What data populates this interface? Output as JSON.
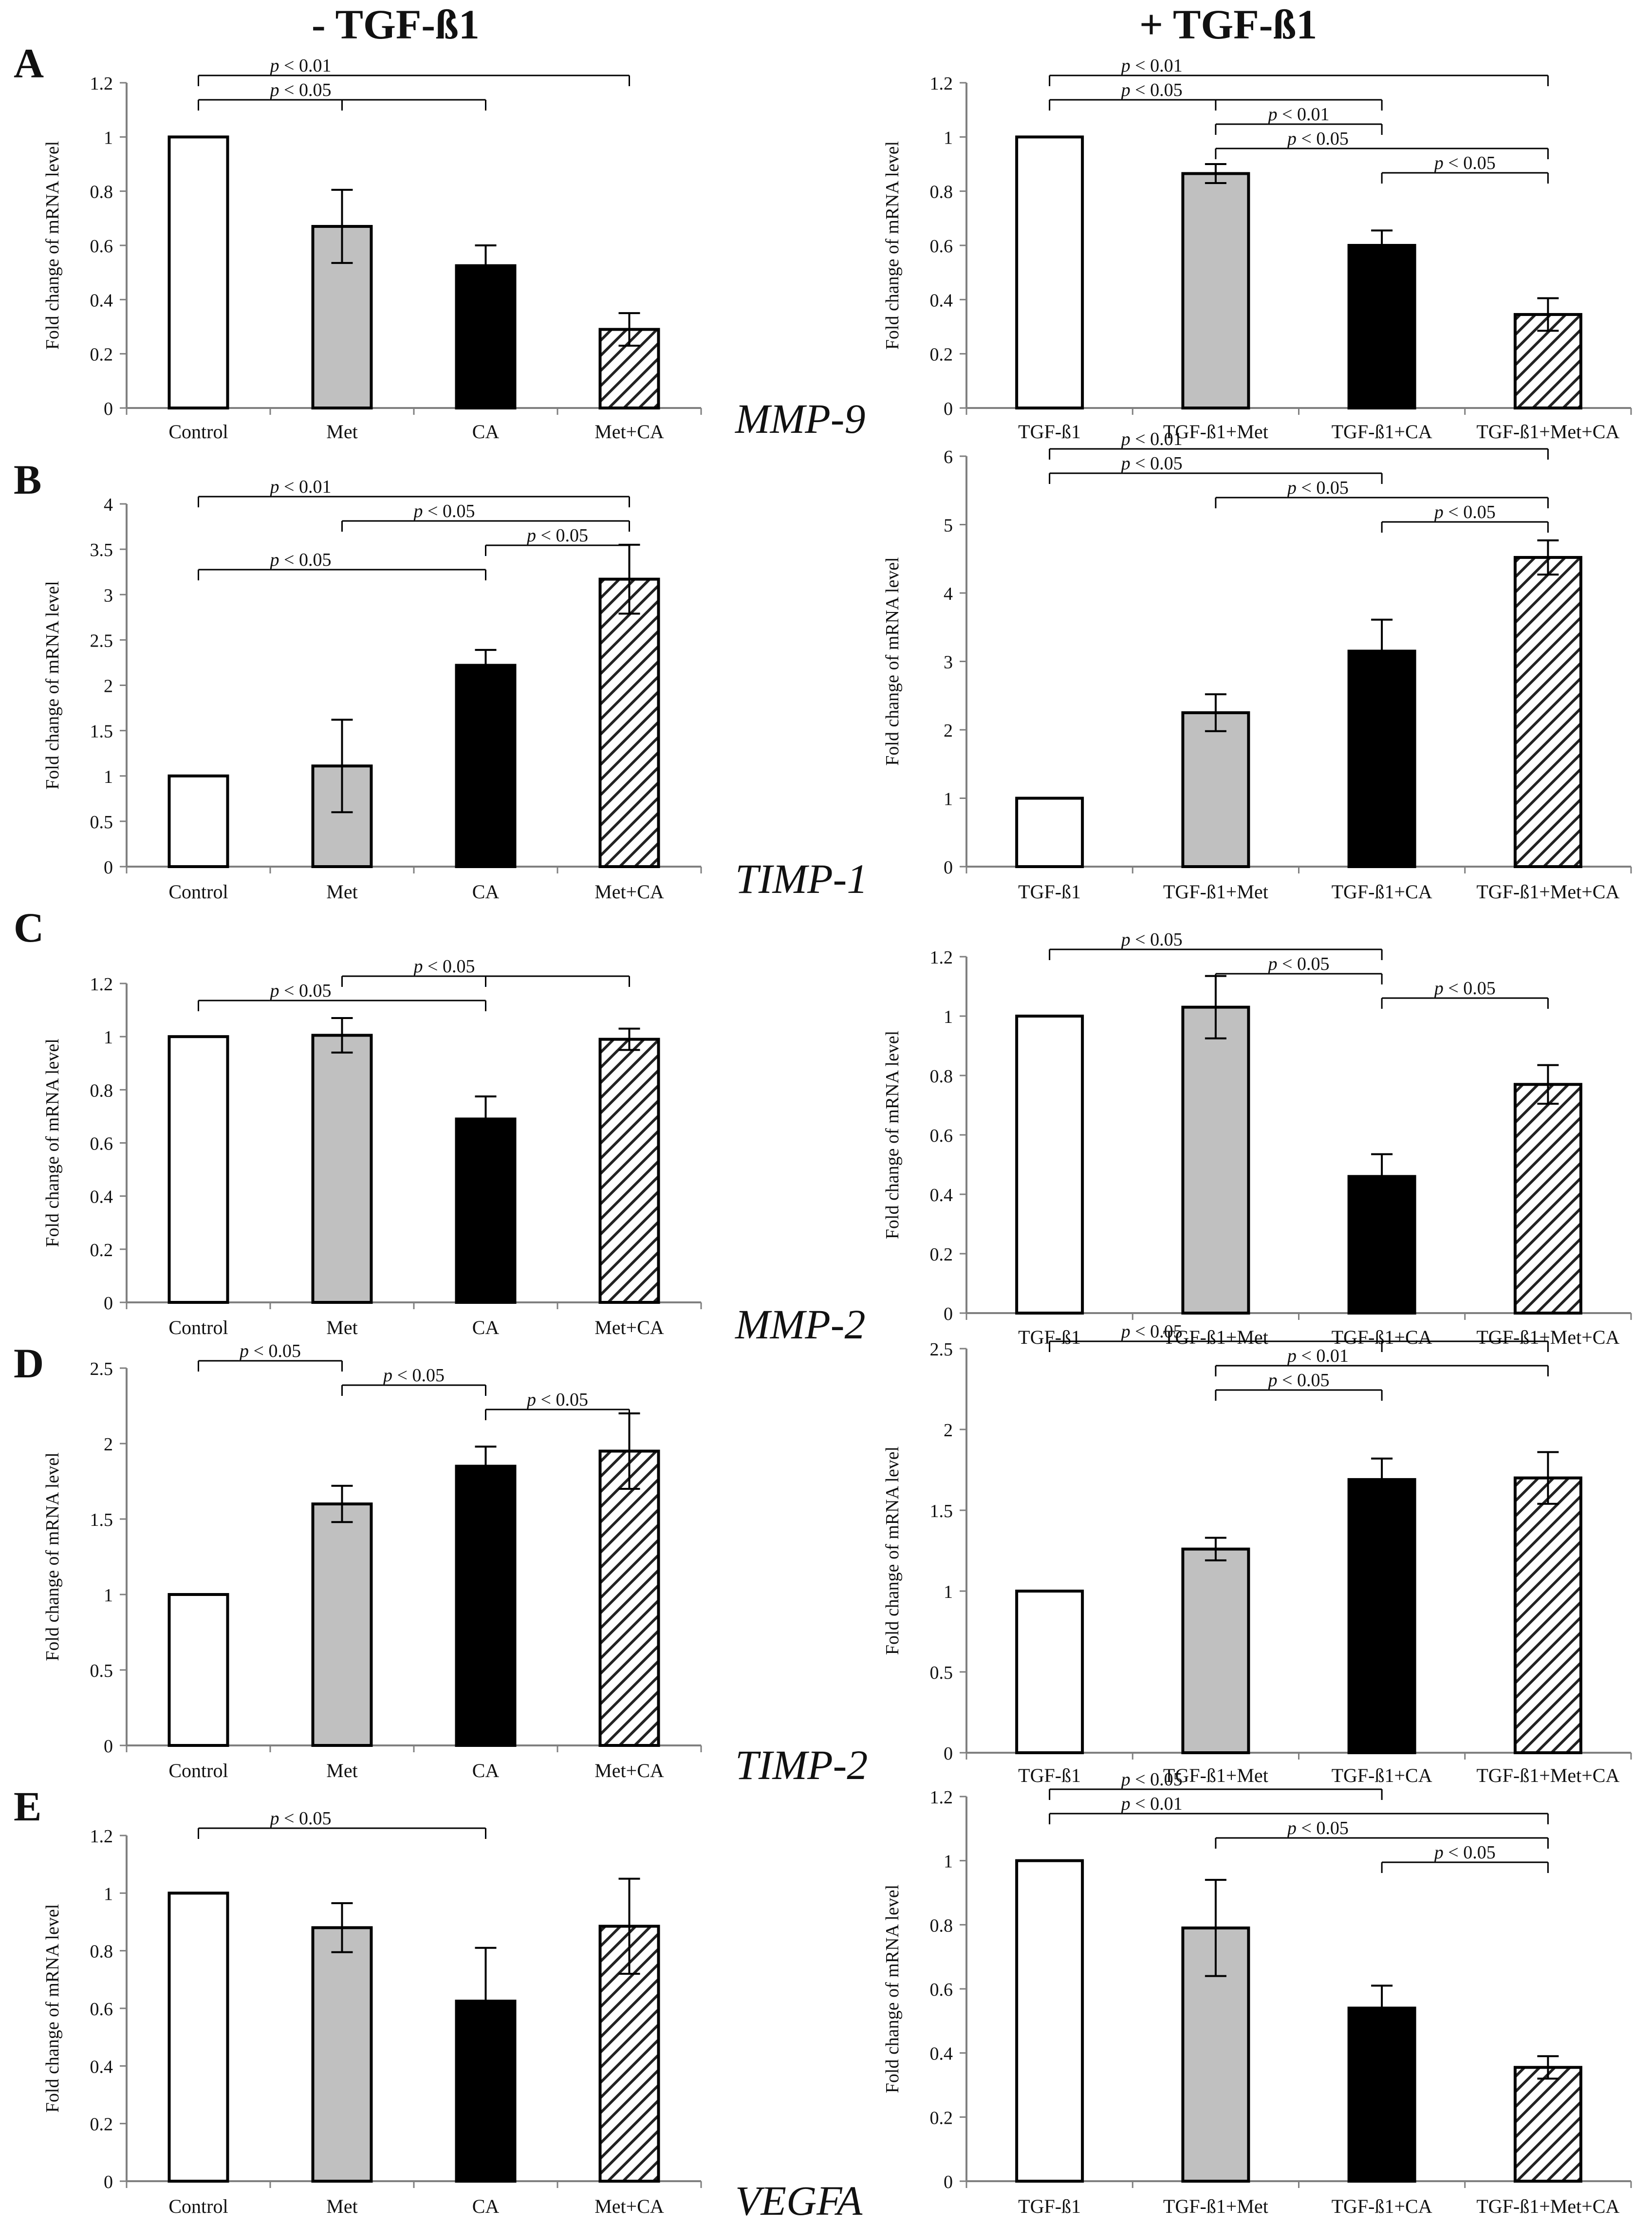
{
  "headers": {
    "left": "- TGF-ß1",
    "right": "+ TGF-ß1"
  },
  "colors": {
    "control": "#ffffff",
    "met": "#c0c0c0",
    "ca": "#000000",
    "hatch": "#222222",
    "axis": "#808080",
    "text": "#111111"
  },
  "rows": [
    {
      "letter": "A",
      "gene": "MMP-9"
    },
    {
      "letter": "B",
      "gene": "TIMP-1"
    },
    {
      "letter": "C",
      "gene": "MMP-2"
    },
    {
      "letter": "D",
      "gene": "TIMP-2"
    },
    {
      "letter": "E",
      "gene": "VEGFA"
    }
  ],
  "chart_data": [
    {
      "id": "A-left",
      "type": "bar",
      "ylabel": "Fold change of mRNA level",
      "ylim": [
        0,
        1.2
      ],
      "yticks": [
        0,
        0.2,
        0.4,
        0.6,
        0.8,
        1,
        1.2
      ],
      "categories": [
        "Control",
        "Met",
        "CA",
        "Met+CA"
      ],
      "values": [
        1.0,
        0.67,
        0.525,
        0.29
      ],
      "errors": [
        0,
        0.135,
        0.075,
        0.06
      ],
      "sig": [
        {
          "label": "p < 0.01",
          "from": 0,
          "to": [
            3
          ]
        },
        {
          "label": "p < 0.05",
          "from": 0,
          "to": [
            1,
            2
          ]
        }
      ]
    },
    {
      "id": "A-right",
      "type": "bar",
      "ylabel": "Fold change of mRNA level",
      "ylim": [
        0,
        1.2
      ],
      "yticks": [
        0,
        0.2,
        0.4,
        0.6,
        0.8,
        1,
        1.2
      ],
      "categories": [
        "TGF-ß1",
        "TGF-ß1+Met",
        "TGF-ß1+CA",
        "TGF-ß1+Met+CA"
      ],
      "values": [
        1.0,
        0.865,
        0.6,
        0.345
      ],
      "errors": [
        0,
        0.035,
        0.055,
        0.06
      ],
      "sig": [
        {
          "label": "p < 0.01",
          "from": 0,
          "to": [
            3
          ]
        },
        {
          "label": "p < 0.05",
          "from": 0,
          "to": [
            1,
            2
          ]
        },
        {
          "label": "p < 0.01",
          "from": 1,
          "to": [
            2
          ]
        },
        {
          "label": "p < 0.05",
          "from": 1,
          "to": [
            3
          ]
        },
        {
          "label": "p < 0.05",
          "from": 2,
          "to": [
            3
          ]
        }
      ]
    },
    {
      "id": "B-left",
      "type": "bar",
      "ylabel": "Fold change of mRNA level",
      "ylim": [
        0,
        4
      ],
      "yticks": [
        0,
        0.5,
        1,
        1.5,
        2,
        2.5,
        3,
        3.5,
        4
      ],
      "categories": [
        "Control",
        "Met",
        "CA",
        "Met+CA"
      ],
      "values": [
        1.0,
        1.11,
        2.22,
        3.17
      ],
      "errors": [
        0,
        0.51,
        0.17,
        0.38
      ],
      "sig": [
        {
          "label": "p < 0.01",
          "from": 0,
          "to": [
            3
          ]
        },
        {
          "label": "p < 0.05",
          "from": 1,
          "to": [
            3
          ]
        },
        {
          "label": "p < 0.05",
          "from": 2,
          "to": [
            3
          ]
        },
        {
          "label": "p < 0.05",
          "from": 0,
          "to": [
            2
          ]
        }
      ]
    },
    {
      "id": "B-right",
      "type": "bar",
      "ylabel": "Fold change of mRNA level",
      "ylim": [
        0,
        6
      ],
      "yticks": [
        0,
        1,
        2,
        3,
        4,
        5,
        6
      ],
      "categories": [
        "TGF-ß1",
        "TGF-ß1+Met",
        "TGF-ß1+CA",
        "TGF-ß1+Met+CA"
      ],
      "values": [
        1.0,
        2.25,
        3.15,
        4.52
      ],
      "errors": [
        0,
        0.27,
        0.46,
        0.25
      ],
      "sig": [
        {
          "label": "p < 0.01",
          "from": 0,
          "to": [
            3
          ]
        },
        {
          "label": "p < 0.05",
          "from": 0,
          "to": [
            2
          ]
        },
        {
          "label": "p < 0.05",
          "from": 1,
          "to": [
            3
          ]
        },
        {
          "label": "p < 0.05",
          "from": 2,
          "to": [
            3
          ]
        }
      ]
    },
    {
      "id": "C-left",
      "type": "bar",
      "ylabel": "Fold change of mRNA level",
      "ylim": [
        0,
        1.2
      ],
      "yticks": [
        0,
        0.2,
        0.4,
        0.6,
        0.8,
        1,
        1.2
      ],
      "categories": [
        "Control",
        "Met",
        "CA",
        "Met+CA"
      ],
      "values": [
        1.0,
        1.005,
        0.69,
        0.99
      ],
      "errors": [
        0,
        0.065,
        0.085,
        0.04
      ],
      "sig": [
        {
          "label": "p < 0.05",
          "from": 2,
          "to": [
            1,
            3
          ]
        },
        {
          "label": "p < 0.05",
          "from": 0,
          "to": [
            2
          ]
        }
      ]
    },
    {
      "id": "C-right",
      "type": "bar",
      "ylabel": "Fold change of mRNA level",
      "ylim": [
        0,
        1.2
      ],
      "yticks": [
        0,
        0.2,
        0.4,
        0.6,
        0.8,
        1,
        1.2
      ],
      "categories": [
        "TGF-ß1",
        "TGF-ß1+Met",
        "TGF-ß1+CA",
        "TGF-ß1+Met+CA"
      ],
      "values": [
        1.0,
        1.03,
        0.46,
        0.77
      ],
      "errors": [
        0,
        0.105,
        0.075,
        0.065
      ],
      "sig": [
        {
          "label": "p < 0.05",
          "from": 0,
          "to": [
            2
          ]
        },
        {
          "label": "p < 0.05",
          "from": 1,
          "to": [
            2
          ]
        },
        {
          "label": "p < 0.05",
          "from": 2,
          "to": [
            3
          ]
        }
      ]
    },
    {
      "id": "D-left",
      "type": "bar",
      "ylabel": "Fold change of mRNA level",
      "ylim": [
        0,
        2.5
      ],
      "yticks": [
        0,
        0.5,
        1,
        1.5,
        2,
        2.5
      ],
      "categories": [
        "Control",
        "Met",
        "CA",
        "Met+CA"
      ],
      "values": [
        1.0,
        1.6,
        1.85,
        1.95
      ],
      "errors": [
        0,
        0.12,
        0.13,
        0.25
      ],
      "sig": [
        {
          "label": "p < 0.05",
          "from": 0,
          "to": [
            1
          ]
        },
        {
          "label": "p < 0.05",
          "from": 1,
          "to": [
            2
          ]
        },
        {
          "label": "p < 0.05",
          "from": 2,
          "to": [
            3
          ]
        }
      ]
    },
    {
      "id": "D-right",
      "type": "bar",
      "ylabel": "Fold change of mRNA level",
      "ylim": [
        0,
        2.5
      ],
      "yticks": [
        0,
        0.5,
        1,
        1.5,
        2,
        2.5
      ],
      "categories": [
        "TGF-ß1",
        "TGF-ß1+Met",
        "TGF-ß1+CA",
        "TGF-ß1+Met+CA"
      ],
      "values": [
        1.0,
        1.26,
        1.69,
        1.7
      ],
      "errors": [
        0,
        0.07,
        0.13,
        0.16
      ],
      "sig": [
        {
          "label": "p < 0.05",
          "from": 0,
          "to": [
            2,
            3
          ]
        },
        {
          "label": "p < 0.01",
          "from": 1,
          "to": [
            3
          ]
        },
        {
          "label": "p < 0.05",
          "from": 1,
          "to": [
            2
          ]
        }
      ]
    },
    {
      "id": "E-left",
      "type": "bar",
      "ylabel": "Fold change of mRNA level",
      "ylim": [
        0,
        1.2
      ],
      "yticks": [
        0,
        0.2,
        0.4,
        0.6,
        0.8,
        1,
        1.2
      ],
      "categories": [
        "Control",
        "Met",
        "CA",
        "Met+CA"
      ],
      "values": [
        1.0,
        0.88,
        0.625,
        0.885
      ],
      "errors": [
        0,
        0.085,
        0.185,
        0.165
      ],
      "sig": [
        {
          "label": "p < 0.05",
          "from": 0,
          "to": [
            2
          ]
        }
      ]
    },
    {
      "id": "E-right",
      "type": "bar",
      "ylabel": "Fold change of mRNA level",
      "ylim": [
        0,
        1.2
      ],
      "yticks": [
        0,
        0.2,
        0.4,
        0.6,
        0.8,
        1,
        1.2
      ],
      "categories": [
        "TGF-ß1",
        "TGF-ß1+Met",
        "TGF-ß1+CA",
        "TGF-ß1+Met+CA"
      ],
      "values": [
        1.0,
        0.79,
        0.54,
        0.355
      ],
      "errors": [
        0,
        0.15,
        0.07,
        0.035
      ],
      "sig": [
        {
          "label": "p < 0.05",
          "from": 0,
          "to": [
            2
          ]
        },
        {
          "label": "p < 0.01",
          "from": 0,
          "to": [
            3
          ]
        },
        {
          "label": "p < 0.05",
          "from": 1,
          "to": [
            3
          ]
        },
        {
          "label": "p < 0.05",
          "from": 2,
          "to": [
            3
          ]
        }
      ]
    }
  ]
}
